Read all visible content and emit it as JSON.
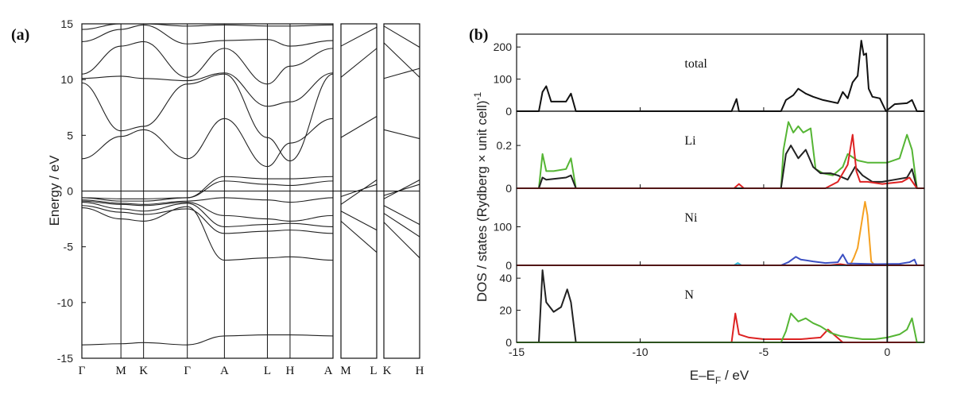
{
  "figure": {
    "panel_a_label": "(a)",
    "panel_b_label": "(b)"
  },
  "chart_data": [
    {
      "type": "line",
      "id": "band-structure",
      "title": "",
      "ylabel": "Energy / eV",
      "xlabel": "",
      "ylim": [
        -15,
        15
      ],
      "yticks": [
        -15,
        -10,
        -5,
        0,
        5,
        10,
        15
      ],
      "segments": [
        {
          "name": "main",
          "kpoints": [
            "Γ",
            "M",
            "K",
            "Γ",
            "A",
            "L",
            "H",
            "A"
          ],
          "kpos": [
            0,
            1,
            1.58,
            2.7,
            3.65,
            4.75,
            5.33,
            6.43
          ]
        },
        {
          "name": "mid",
          "kpoints": [
            "M",
            "L"
          ],
          "kpos": [
            0,
            1
          ]
        },
        {
          "name": "right",
          "kpoints": [
            "K",
            "H"
          ],
          "kpos": [
            0,
            1
          ]
        }
      ],
      "kpoint_labels": [
        "Γ",
        "M",
        "K",
        "Γ",
        "A",
        "L",
        "H",
        "A",
        "M",
        "L",
        "K",
        "H"
      ],
      "fermi_level": 0,
      "bands": [
        {
          "seg": 0,
          "y": [
            -13.8,
            -13.7,
            -13.6,
            -13.8,
            -13.0,
            -12.9,
            -12.9,
            -13.0
          ]
        },
        {
          "seg": 0,
          "y": [
            -1.5,
            -2.5,
            -2.7,
            -1.4,
            -6.2,
            -6.0,
            -5.9,
            -6.2
          ]
        },
        {
          "seg": 0,
          "y": [
            -1.3,
            -1.9,
            -2.1,
            -1.6,
            -3.8,
            -3.6,
            -3.5,
            -3.8
          ]
        },
        {
          "seg": 0,
          "y": [
            -1.0,
            -1.6,
            -1.8,
            -1.1,
            -3.2,
            -3.0,
            -2.9,
            -3.2
          ]
        },
        {
          "seg": 0,
          "y": [
            -0.8,
            -1.1,
            -1.2,
            -0.9,
            -0.6,
            -0.8,
            -1.0,
            -0.6
          ]
        },
        {
          "seg": 0,
          "y": [
            -0.6,
            -0.9,
            -0.9,
            -0.6,
            1.3,
            1.1,
            1.1,
            1.3
          ]
        },
        {
          "seg": 0,
          "y": [
            -0.6,
            -0.7,
            -0.7,
            -0.6,
            0.9,
            0.6,
            0.5,
            0.9
          ]
        },
        {
          "seg": 0,
          "y": [
            -0.9,
            -1.2,
            -1.3,
            -1.0,
            -2.2,
            -2.5,
            -2.7,
            -2.2
          ]
        },
        {
          "seg": 0,
          "y": [
            2.9,
            4.9,
            5.5,
            2.9,
            6.5,
            2.2,
            4.3,
            6.5
          ]
        },
        {
          "seg": 0,
          "y": [
            9.7,
            5.4,
            5.8,
            9.6,
            10.5,
            4.8,
            2.7,
            10.5
          ]
        },
        {
          "seg": 0,
          "y": [
            10.1,
            10.3,
            10.1,
            9.9,
            10.6,
            7.6,
            8.0,
            10.6
          ]
        },
        {
          "seg": 0,
          "y": [
            10.5,
            13.0,
            13.4,
            10.2,
            12.8,
            9.6,
            11.2,
            12.8
          ]
        },
        {
          "seg": 0,
          "y": [
            13.4,
            14.5,
            14.9,
            13.2,
            13.5,
            13.6,
            13.0,
            13.5
          ]
        },
        {
          "seg": 0,
          "y": [
            14.5,
            15.0,
            15.0,
            14.8,
            14.9,
            14.8,
            14.8,
            14.9
          ]
        },
        {
          "seg": 1,
          "y": [
            -2.7,
            -5.5
          ]
        },
        {
          "seg": 1,
          "y": [
            -1.8,
            -3.5
          ]
        },
        {
          "seg": 1,
          "y": [
            -1.2,
            1.0
          ]
        },
        {
          "seg": 1,
          "y": [
            -0.5,
            0.6
          ]
        },
        {
          "seg": 1,
          "y": [
            4.8,
            6.7
          ]
        },
        {
          "seg": 1,
          "y": [
            10.2,
            12.8
          ]
        },
        {
          "seg": 1,
          "y": [
            13.0,
            14.7
          ]
        },
        {
          "seg": 2,
          "y": [
            -2.8,
            -6.0
          ]
        },
        {
          "seg": 2,
          "y": [
            -2.0,
            -4.1
          ]
        },
        {
          "seg": 2,
          "y": [
            -1.3,
            -3.0
          ]
        },
        {
          "seg": 2,
          "y": [
            -0.7,
            1.0
          ]
        },
        {
          "seg": 2,
          "y": [
            -0.4,
            0.6
          ]
        },
        {
          "seg": 2,
          "y": [
            5.5,
            4.7
          ]
        },
        {
          "seg": 2,
          "y": [
            10.1,
            11.0
          ]
        },
        {
          "seg": 2,
          "y": [
            13.3,
            10.2
          ]
        },
        {
          "seg": 2,
          "y": [
            14.8,
            12.9
          ]
        }
      ]
    },
    {
      "type": "line",
      "id": "dos",
      "title": "",
      "xlabel": "E–E",
      "xlabel_sub": "F",
      "xlabel_unit": " / eV",
      "ylabel": "DOS / states (Rydberg × unit cell)",
      "ylabel_sup": "-1",
      "xlim": [
        -15,
        1.5
      ],
      "xticks": [
        -15,
        -10,
        -5,
        0
      ],
      "fermi_level": 0,
      "panels": [
        {
          "name": "total",
          "label": "total",
          "ylim": [
            0,
            240
          ],
          "yticks": [
            0,
            100,
            200
          ],
          "series": [
            {
              "name": "total",
              "color": "#111111",
              "x": [
                -15,
                -14.1,
                -13.95,
                -13.8,
                -13.6,
                -13.0,
                -12.8,
                -12.6,
                -6.3,
                -6.1,
                -6.0,
                -4.3,
                -4.1,
                -3.8,
                -3.6,
                -3.3,
                -3.0,
                -2.6,
                -2.0,
                -1.8,
                -1.6,
                -1.4,
                -1.2,
                -1.05,
                -0.95,
                -0.85,
                -0.75,
                -0.6,
                -0.3,
                -0.05,
                0.3,
                0.8,
                1.0,
                1.2,
                1.5
              ],
              "y": [
                0,
                0,
                60,
                78,
                30,
                30,
                55,
                0,
                0,
                38,
                0,
                0,
                35,
                50,
                70,
                55,
                45,
                35,
                25,
                60,
                40,
                90,
                110,
                220,
                175,
                180,
                70,
                45,
                40,
                0,
                22,
                25,
                35,
                0,
                0
              ]
            }
          ]
        },
        {
          "name": "Li",
          "label": "Li",
          "ylim": [
            0,
            0.36
          ],
          "yticks": [
            0,
            0.2
          ],
          "series": [
            {
              "name": "Li-green",
              "color": "#55b534",
              "x": [
                -15,
                -14.1,
                -13.95,
                -13.8,
                -13.5,
                -13.0,
                -12.8,
                -12.6,
                -4.3,
                -4.2,
                -4.0,
                -3.8,
                -3.6,
                -3.4,
                -3.1,
                -2.9,
                -2.6,
                -2.2,
                -1.8,
                -1.6,
                -1.2,
                -0.8,
                -0.4,
                0.0,
                0.5,
                0.8,
                1.0,
                1.2,
                1.5
              ],
              "y": [
                0,
                0,
                0.16,
                0.08,
                0.08,
                0.09,
                0.14,
                0,
                0,
                0.18,
                0.31,
                0.26,
                0.29,
                0.26,
                0.28,
                0.09,
                0.07,
                0.06,
                0.1,
                0.16,
                0.13,
                0.12,
                0.12,
                0.12,
                0.14,
                0.25,
                0.18,
                0,
                0
              ]
            },
            {
              "name": "Li-black",
              "color": "#222222",
              "x": [
                -15,
                -14.1,
                -13.95,
                -13.8,
                -13.0,
                -12.8,
                -12.6,
                -4.3,
                -4.1,
                -3.9,
                -3.6,
                -3.3,
                -3.0,
                -2.7,
                -2.3,
                -2.0,
                -1.6,
                -1.3,
                -1.0,
                -0.6,
                -0.2,
                0.3,
                0.8,
                1.0,
                1.2,
                1.5
              ],
              "y": [
                0,
                0,
                0.05,
                0.04,
                0.05,
                0.06,
                0,
                0,
                0.16,
                0.2,
                0.14,
                0.18,
                0.1,
                0.07,
                0.07,
                0.06,
                0.04,
                0.1,
                0.06,
                0.03,
                0.03,
                0.04,
                0.05,
                0.09,
                0,
                0
              ]
            },
            {
              "name": "Li-red",
              "color": "#dd2222",
              "x": [
                -15,
                -6.2,
                -6.0,
                -5.8,
                -2.5,
                -2.0,
                -1.6,
                -1.4,
                -1.25,
                -1.1,
                -0.8,
                -0.2,
                0.6,
                0.9,
                1.2,
                1.5
              ],
              "y": [
                0,
                0,
                0.02,
                0,
                0,
                0.03,
                0.11,
                0.25,
                0.08,
                0.03,
                0.03,
                0.02,
                0.03,
                0.05,
                0,
                0
              ]
            }
          ]
        },
        {
          "name": "Ni",
          "label": "Ni",
          "ylim": [
            0,
            200
          ],
          "yticks": [
            0,
            100
          ],
          "series": [
            {
              "name": "Ni-orange",
              "color": "#f5a020",
              "x": [
                -15,
                -1.5,
                -1.35,
                -1.2,
                -1.05,
                -0.9,
                -0.8,
                -0.65,
                -0.5,
                1.5
              ],
              "y": [
                0,
                0,
                20,
                45,
                105,
                165,
                130,
                10,
                0,
                0
              ]
            },
            {
              "name": "Ni-blue",
              "color": "#3b4fc2",
              "x": [
                -15,
                -4.3,
                -4.0,
                -3.7,
                -3.5,
                -3.0,
                -2.5,
                -2.0,
                -1.8,
                -1.6,
                -0.4,
                0.5,
                0.9,
                1.1,
                1.2,
                1.5
              ],
              "y": [
                0,
                0,
                8,
                22,
                15,
                10,
                6,
                8,
                28,
                5,
                3,
                4,
                8,
                15,
                0,
                0
              ]
            },
            {
              "name": "Ni-cyan",
              "color": "#30b8d8",
              "x": [
                -15,
                -6.2,
                -6.05,
                -5.9,
                1.5
              ],
              "y": [
                0,
                0,
                6,
                0,
                0
              ]
            },
            {
              "name": "Ni-red",
              "color": "#dd2222",
              "x": [
                -15,
                -2.3,
                -1.9,
                -1.6,
                1.5
              ],
              "y": [
                0,
                0,
                3,
                0,
                0
              ]
            }
          ]
        },
        {
          "name": "N",
          "label": "N",
          "ylim": [
            0,
            48
          ],
          "yticks": [
            0,
            20,
            40
          ],
          "series": [
            {
              "name": "N-black",
              "color": "#222222",
              "x": [
                -15,
                -14.1,
                -13.95,
                -13.8,
                -13.5,
                -13.2,
                -12.95,
                -12.8,
                -12.6,
                1.5
              ],
              "y": [
                0,
                0,
                45,
                25,
                19,
                22,
                33,
                25,
                0,
                0
              ]
            },
            {
              "name": "N-red",
              "color": "#dd2222",
              "x": [
                -15,
                -6.3,
                -6.15,
                -6.0,
                -5.6,
                -5.0,
                -4.0,
                -3.5,
                -2.7,
                -2.4,
                -2.1,
                -1.8,
                1.5
              ],
              "y": [
                0,
                0,
                18,
                5,
                3,
                2,
                2,
                2,
                3,
                8,
                4,
                0,
                0
              ]
            },
            {
              "name": "N-green",
              "color": "#55b534",
              "x": [
                -15,
                -6.3,
                -4.3,
                -4.1,
                -3.9,
                -3.6,
                -3.3,
                -3.0,
                -2.7,
                -2.3,
                -1.9,
                -1.5,
                -1.0,
                -0.5,
                0.0,
                0.5,
                0.8,
                1.0,
                1.2,
                1.5
              ],
              "y": [
                0,
                0,
                0,
                7,
                18,
                13,
                15,
                12,
                10,
                6,
                4,
                3,
                2,
                2,
                3,
                5,
                8,
                15,
                0,
                0
              ]
            }
          ]
        }
      ]
    }
  ]
}
